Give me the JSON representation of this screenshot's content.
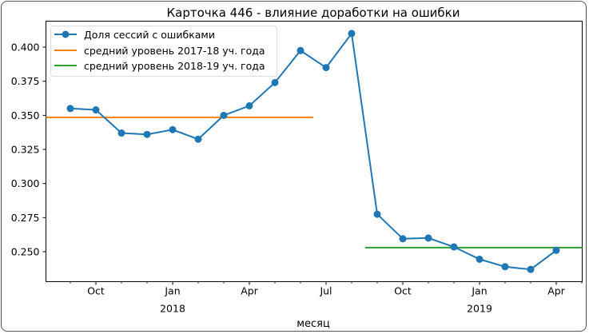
{
  "chart_data": {
    "type": "line",
    "title": "Карточка 446 - влияние доработки на ошибки",
    "xlabel": "месяц",
    "ylabel": "",
    "ylim": [
      0.23,
      0.42
    ],
    "yticks": [
      "0.250",
      "0.275",
      "0.300",
      "0.325",
      "0.350",
      "0.375",
      "0.400"
    ],
    "ytick_values": [
      0.25,
      0.275,
      0.3,
      0.325,
      0.35,
      0.375,
      0.4
    ],
    "xticks": [
      {
        "label": "Oct",
        "sub": "",
        "month_index": 1
      },
      {
        "label": "Jan",
        "sub": "2018",
        "month_index": 4
      },
      {
        "label": "Apr",
        "sub": "",
        "month_index": 7
      },
      {
        "label": "Jul",
        "sub": "",
        "month_index": 10
      },
      {
        "label": "Oct",
        "sub": "",
        "month_index": 13
      },
      {
        "label": "Jan",
        "sub": "2019",
        "month_index": 16
      },
      {
        "label": "Apr",
        "sub": "",
        "month_index": 19
      }
    ],
    "grid": false,
    "legend_position": "upper left",
    "categories": [
      "2017-09",
      "2017-10",
      "2017-11",
      "2017-12",
      "2018-01",
      "2018-02",
      "2018-03",
      "2018-04",
      "2018-05",
      "2018-06",
      "2018-07",
      "2018-08",
      "2018-09",
      "2018-10",
      "2018-11",
      "2018-12",
      "2019-01",
      "2019-02",
      "2019-03",
      "2019-04"
    ],
    "series": [
      {
        "name": "Доля сессий с ошибками",
        "color": "#1f77b4",
        "marker": "circle",
        "values": [
          0.355,
          0.354,
          0.337,
          0.336,
          0.3395,
          0.3325,
          0.35,
          0.357,
          0.374,
          0.3975,
          0.385,
          0.41,
          0.2775,
          0.2595,
          0.26,
          0.2535,
          0.2445,
          0.239,
          0.237,
          0.251
        ]
      },
      {
        "name": "средний уровень 2017-18 уч. года",
        "color": "#ff7f0e",
        "marker": "none",
        "value": 0.3485,
        "x_range": [
          "2017-08",
          "2018-07"
        ]
      },
      {
        "name": "средний уровень 2018-19 уч. года",
        "color": "#2ca02c",
        "marker": "none",
        "value": 0.253,
        "x_range": [
          "2018-08-20",
          "2019-04-30"
        ]
      }
    ]
  }
}
